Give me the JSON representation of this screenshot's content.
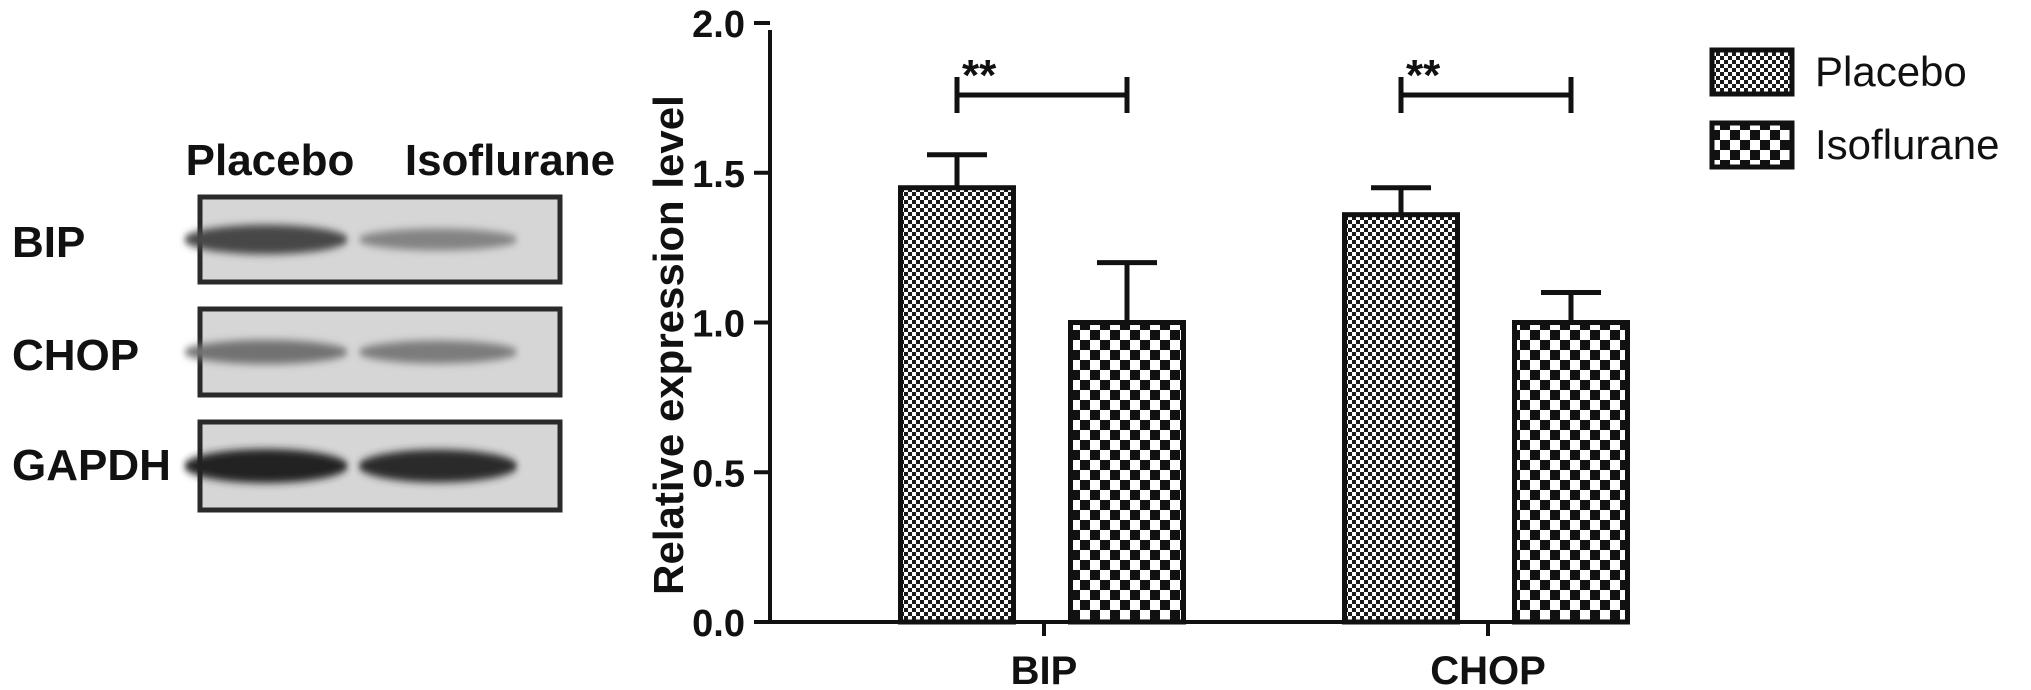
{
  "western_blot": {
    "lane_labels": [
      "Placebo",
      "Isoflurane"
    ],
    "rows": [
      {
        "label": "BIP",
        "band_intensity": [
          0.8,
          0.45
        ]
      },
      {
        "label": "CHOP",
        "band_intensity": [
          0.55,
          0.5
        ]
      },
      {
        "label": "GAPDH",
        "band_intensity": [
          1.0,
          0.95
        ]
      }
    ]
  },
  "chart_data": {
    "type": "bar",
    "categories": [
      "BIP",
      "CHOP"
    ],
    "series": [
      {
        "name": "Placebo",
        "values": [
          1.45,
          1.36
        ],
        "error": [
          0.11,
          0.09
        ],
        "pattern": "fine-checker"
      },
      {
        "name": "Isoflurane",
        "values": [
          1.0,
          1.0
        ],
        "error": [
          0.2,
          0.1
        ],
        "pattern": "coarse-checker"
      }
    ],
    "significance": [
      {
        "category": "BIP",
        "label": "**"
      },
      {
        "category": "CHOP",
        "label": "**"
      }
    ],
    "ylabel": "Relative expression level",
    "xlabel": "",
    "ylim": [
      0,
      2.0
    ],
    "yticks": [
      "0.0",
      "0.5",
      "1.0",
      "1.5",
      "2.0"
    ],
    "legend_position": "top-right",
    "grid": false,
    "colors": {
      "ink": "#111111",
      "checker_light": "#ffffff",
      "checker_dark": "#111111"
    }
  }
}
